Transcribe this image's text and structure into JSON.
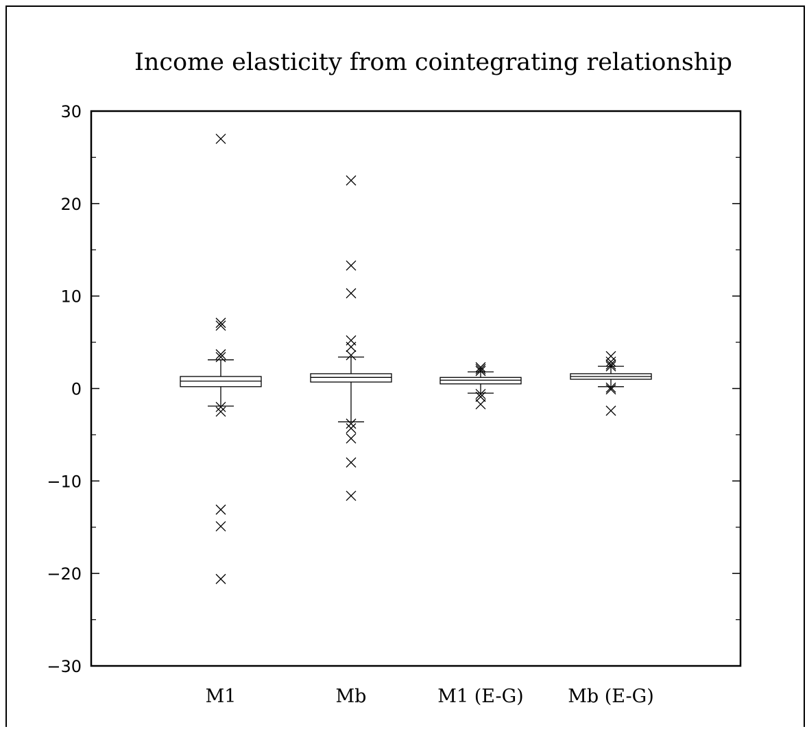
{
  "chart_data": {
    "type": "boxplot",
    "title": "Income elasticity from cointegrating relationship",
    "xlabel": "",
    "ylabel": "",
    "ylim": [
      -30,
      30
    ],
    "yticks": [
      30,
      20,
      10,
      0,
      -10,
      -20,
      -30
    ],
    "ytick_labels": [
      "30",
      "20",
      "10",
      "0",
      "−10",
      "−20",
      "−30"
    ],
    "minor_tick_step": 5,
    "grid": false,
    "legend": "none",
    "categories": [
      "M1",
      "Mb",
      "M1 (E-G)",
      "Mb (E-G)"
    ],
    "boxes": [
      {
        "category": "M1",
        "q1": 0.2,
        "median": 0.8,
        "q3": 1.3,
        "whisker_low": -1.9,
        "whisker_high": 3.1,
        "outliers": [
          27.0,
          7.1,
          6.8,
          3.7,
          3.4,
          -2.0,
          -2.5,
          -13.1,
          -14.9,
          -20.6
        ]
      },
      {
        "category": "Mb",
        "q1": 0.7,
        "median": 1.2,
        "q3": 1.6,
        "whisker_low": -3.6,
        "whisker_high": 3.4,
        "outliers": [
          22.5,
          13.3,
          10.3,
          5.2,
          4.5,
          3.6,
          -3.8,
          -4.3,
          -5.4,
          -8.0,
          -11.6
        ]
      },
      {
        "category": "M1 (E-G)",
        "q1": 0.5,
        "median": 0.9,
        "q3": 1.2,
        "whisker_low": -0.5,
        "whisker_high": 1.8,
        "outliers": [
          2.3,
          2.1,
          1.9,
          -0.6,
          -0.9,
          -1.7
        ]
      },
      {
        "category": "Mb (E-G)",
        "q1": 1.0,
        "median": 1.3,
        "q3": 1.6,
        "whisker_low": 0.2,
        "whisker_high": 2.4,
        "outliers": [
          3.5,
          2.9,
          2.6,
          2.4,
          0.1,
          -0.1,
          -2.4
        ]
      }
    ],
    "colors": {
      "line": "#000000",
      "background": "#ffffff"
    }
  }
}
